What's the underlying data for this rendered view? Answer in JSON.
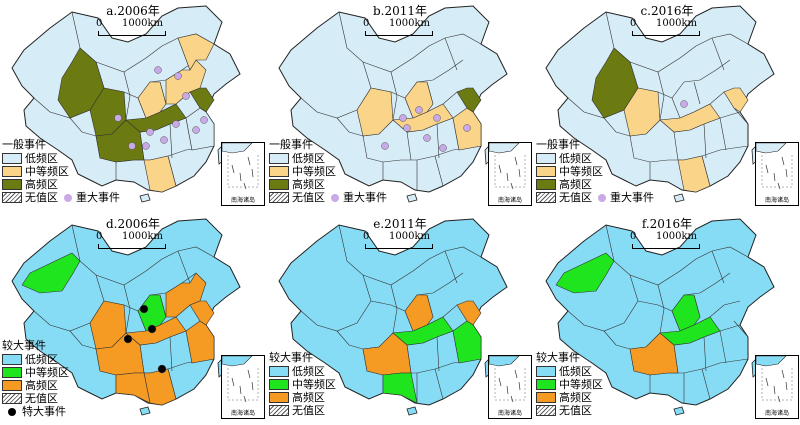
{
  "colors": {
    "low": "#d6ecf7",
    "tan": "#f9d489",
    "olive": "#6b7b12",
    "cyan": "#87dcf5",
    "green": "#1ee51e",
    "orange": "#f59a22",
    "major_dot": "#c9a9e8",
    "huge_dot": "#000000",
    "border": "#222222"
  },
  "scale": {
    "zero": "0",
    "km": "1000km"
  },
  "inset_label": "南海诸岛",
  "panels": [
    {
      "title": "a.2006年",
      "legend_title": "一般事件",
      "items": [
        {
          "label": "低频区",
          "color": "low"
        },
        {
          "label": "中等频区",
          "color": "tan"
        },
        {
          "label": "高频区",
          "color": "olive"
        },
        {
          "label": "无值区",
          "color": "hatch"
        }
      ],
      "event_label": "重大事件",
      "event_color": "major_dot"
    },
    {
      "title": "b.2011年",
      "legend_title": "一般事件",
      "items": [
        {
          "label": "低频区",
          "color": "low"
        },
        {
          "label": "中等频区",
          "color": "tan"
        },
        {
          "label": "高频区",
          "color": "olive"
        },
        {
          "label": "无值区",
          "color": "hatch"
        }
      ],
      "event_label": "重大事件",
      "event_color": "major_dot"
    },
    {
      "title": "c.2016年",
      "legend_title": "一般事件",
      "items": [
        {
          "label": "低频区",
          "color": "low"
        },
        {
          "label": "中等频区",
          "color": "tan"
        },
        {
          "label": "高频区",
          "color": "olive"
        },
        {
          "label": "无值区",
          "color": "hatch"
        }
      ],
      "event_label": "重大事件",
      "event_color": "major_dot"
    },
    {
      "title": "d.2006年",
      "legend_title": "较大事件",
      "items": [
        {
          "label": "低频区",
          "color": "cyan"
        },
        {
          "label": "中等频区",
          "color": "green"
        },
        {
          "label": "高频区",
          "color": "orange"
        },
        {
          "label": "无值区",
          "color": "hatch"
        }
      ],
      "event_label": "特大事件",
      "event_color": "huge_dot"
    },
    {
      "title": "e.2011年",
      "legend_title": "较大事件",
      "items": [
        {
          "label": "低频区",
          "color": "cyan"
        },
        {
          "label": "中等频区",
          "color": "green"
        },
        {
          "label": "高频区",
          "color": "orange"
        },
        {
          "label": "无值区",
          "color": "hatch"
        }
      ],
      "event_label": "",
      "event_color": ""
    },
    {
      "title": "f.2016年",
      "legend_title": "较大事件",
      "items": [
        {
          "label": "低频区",
          "color": "cyan"
        },
        {
          "label": "中等频区",
          "color": "green"
        },
        {
          "label": "高频区",
          "color": "orange"
        },
        {
          "label": "无值区",
          "color": "hatch"
        }
      ],
      "event_label": "",
      "event_color": ""
    }
  ]
}
